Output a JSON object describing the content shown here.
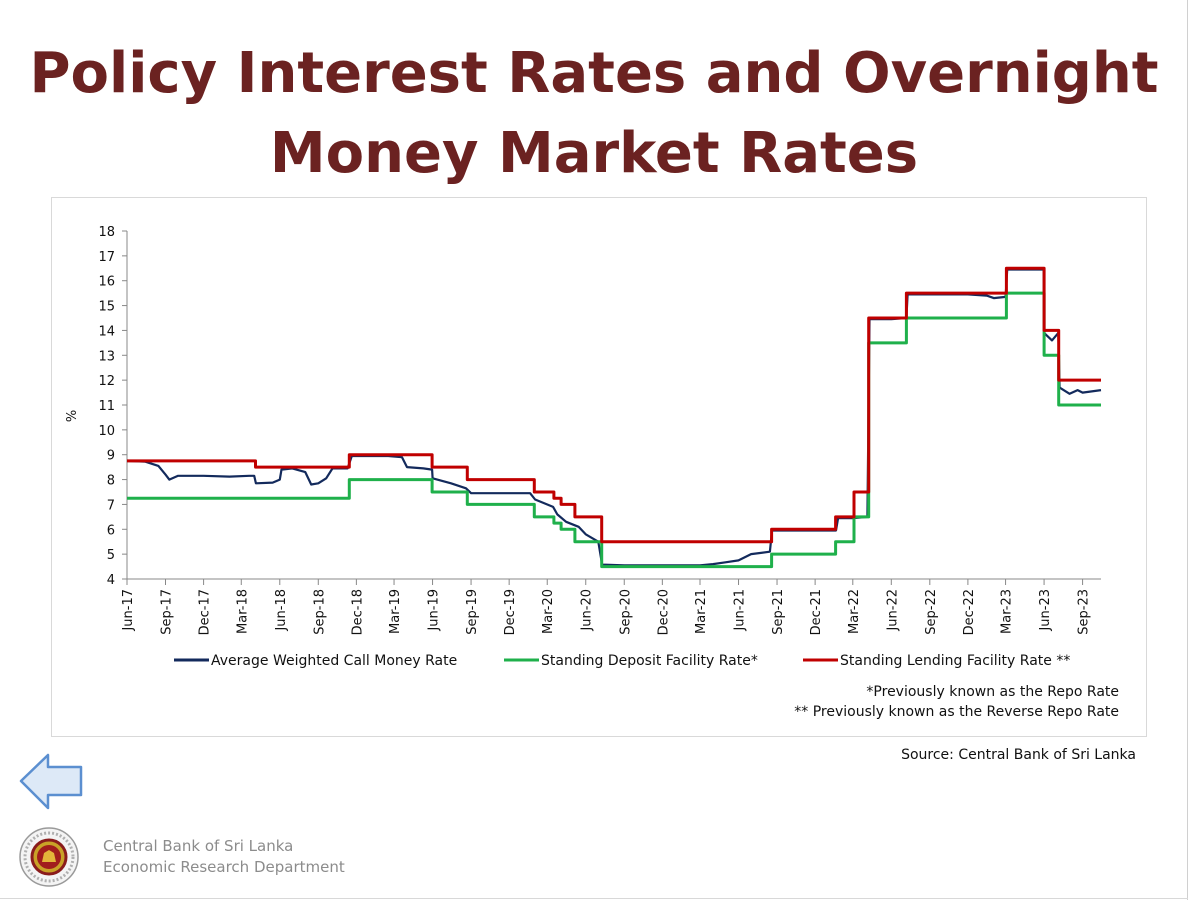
{
  "page": {
    "title_line1": "Policy Interest Rates and Overnight",
    "title_line2": "Money Market Rates",
    "note1": "*Previously known as the Repo Rate",
    "note2": "** Previously known as the  Reverse Repo Rate",
    "source": "Source: Central Bank of Sri Lanka",
    "footer_line1": "Central Bank of Sri Lanka",
    "footer_line2": "Economic Research Department",
    "back_icon": "left-arrow-icon",
    "logo_icon": "central-bank-seal-icon"
  },
  "chart_data": {
    "type": "line",
    "title": "Policy Interest Rates and Overnight Money Market Rates",
    "ylabel": "%",
    "xlabel": "",
    "ylim": [
      4,
      18
    ],
    "yticks": [
      4,
      5,
      6,
      7,
      8,
      9,
      10,
      11,
      12,
      13,
      14,
      15,
      16,
      17,
      18
    ],
    "xlim": [
      "2017-06-01",
      "2023-10-15"
    ],
    "xticks": [
      {
        "label": "Jun-17",
        "date": "2017-06-01"
      },
      {
        "label": "Sep-17",
        "date": "2017-09-01"
      },
      {
        "label": "Dec-17",
        "date": "2017-12-01"
      },
      {
        "label": "Mar-18",
        "date": "2018-03-01"
      },
      {
        "label": "Jun-18",
        "date": "2018-06-01"
      },
      {
        "label": "Sep-18",
        "date": "2018-09-01"
      },
      {
        "label": "Dec-18",
        "date": "2018-12-01"
      },
      {
        "label": "Mar-19",
        "date": "2019-03-01"
      },
      {
        "label": "Jun-19",
        "date": "2019-06-01"
      },
      {
        "label": "Sep-19",
        "date": "2019-09-01"
      },
      {
        "label": "Dec-19",
        "date": "2019-12-01"
      },
      {
        "label": "Mar-20",
        "date": "2020-03-01"
      },
      {
        "label": "Jun-20",
        "date": "2020-06-01"
      },
      {
        "label": "Sep-20",
        "date": "2020-09-01"
      },
      {
        "label": "Dec-20",
        "date": "2020-12-01"
      },
      {
        "label": "Mar-21",
        "date": "2021-03-01"
      },
      {
        "label": "Jun-21",
        "date": "2021-06-01"
      },
      {
        "label": "Sep-21",
        "date": "2021-09-01"
      },
      {
        "label": "Dec-21",
        "date": "2021-12-01"
      },
      {
        "label": "Mar-22",
        "date": "2022-03-01"
      },
      {
        "label": "Jun-22",
        "date": "2022-06-01"
      },
      {
        "label": "Sep-22",
        "date": "2022-09-01"
      },
      {
        "label": "Dec-22",
        "date": "2022-12-01"
      },
      {
        "label": "Mar-23",
        "date": "2023-03-01"
      },
      {
        "label": "Jun-23",
        "date": "2023-06-01"
      },
      {
        "label": "Sep-23",
        "date": "2023-09-01"
      }
    ],
    "legend_placement": "bottom",
    "grid": false,
    "series": [
      {
        "name": "Average Weighted Call Money Rate",
        "color": "#132a5c",
        "step": false,
        "points": [
          [
            "2017-06-01",
            8.75
          ],
          [
            "2017-07-15",
            8.72
          ],
          [
            "2017-08-15",
            8.55
          ],
          [
            "2017-09-01",
            8.2
          ],
          [
            "2017-09-10",
            8.0
          ],
          [
            "2017-10-01",
            8.15
          ],
          [
            "2017-12-01",
            8.15
          ],
          [
            "2018-02-01",
            8.12
          ],
          [
            "2018-03-20",
            8.15
          ],
          [
            "2018-04-01",
            8.15
          ],
          [
            "2018-04-05",
            7.85
          ],
          [
            "2018-05-15",
            7.88
          ],
          [
            "2018-06-01",
            8.0
          ],
          [
            "2018-06-05",
            8.4
          ],
          [
            "2018-07-01",
            8.45
          ],
          [
            "2018-08-01",
            8.3
          ],
          [
            "2018-08-15",
            7.8
          ],
          [
            "2018-09-01",
            7.85
          ],
          [
            "2018-09-20",
            8.05
          ],
          [
            "2018-10-05",
            8.45
          ],
          [
            "2018-11-10",
            8.45
          ],
          [
            "2018-11-20",
            8.95
          ],
          [
            "2018-12-15",
            8.95
          ],
          [
            "2019-02-15",
            8.95
          ],
          [
            "2019-03-20",
            8.9
          ],
          [
            "2019-04-01",
            8.5
          ],
          [
            "2019-05-10",
            8.45
          ],
          [
            "2019-05-31",
            8.4
          ],
          [
            "2019-06-01",
            8.05
          ],
          [
            "2019-07-15",
            7.85
          ],
          [
            "2019-08-20",
            7.65
          ],
          [
            "2019-09-01",
            7.45
          ],
          [
            "2019-10-15",
            7.45
          ],
          [
            "2019-12-01",
            7.45
          ],
          [
            "2020-01-20",
            7.45
          ],
          [
            "2020-02-01",
            7.2
          ],
          [
            "2020-03-15",
            6.9
          ],
          [
            "2020-03-25",
            6.6
          ],
          [
            "2020-04-15",
            6.3
          ],
          [
            "2020-05-15",
            6.1
          ],
          [
            "2020-06-01",
            5.8
          ],
          [
            "2020-07-01",
            5.5
          ],
          [
            "2020-07-10",
            4.58
          ],
          [
            "2020-09-01",
            4.55
          ],
          [
            "2020-12-01",
            4.55
          ],
          [
            "2021-03-01",
            4.55
          ],
          [
            "2021-04-01",
            4.6
          ],
          [
            "2021-05-01",
            4.67
          ],
          [
            "2021-06-01",
            4.75
          ],
          [
            "2021-07-01",
            5.0
          ],
          [
            "2021-08-15",
            5.1
          ],
          [
            "2021-08-20",
            5.95
          ],
          [
            "2021-10-01",
            5.95
          ],
          [
            "2021-12-01",
            5.95
          ],
          [
            "2022-01-20",
            5.95
          ],
          [
            "2022-01-25",
            6.45
          ],
          [
            "2022-03-01",
            6.45
          ],
          [
            "2022-04-05",
            6.5
          ],
          [
            "2022-04-10",
            14.45
          ],
          [
            "2022-06-01",
            14.45
          ],
          [
            "2022-07-07",
            14.5
          ],
          [
            "2022-07-10",
            15.45
          ],
          [
            "2022-09-01",
            15.45
          ],
          [
            "2022-12-01",
            15.45
          ],
          [
            "2023-01-15",
            15.4
          ],
          [
            "2023-02-01",
            15.3
          ],
          [
            "2023-03-01",
            15.35
          ],
          [
            "2023-03-05",
            16.45
          ],
          [
            "2023-05-31",
            16.45
          ],
          [
            "2023-06-01",
            13.9
          ],
          [
            "2023-06-20",
            13.6
          ],
          [
            "2023-07-05",
            13.9
          ],
          [
            "2023-07-08",
            11.7
          ],
          [
            "2023-08-01",
            11.45
          ],
          [
            "2023-08-20",
            11.6
          ],
          [
            "2023-09-01",
            11.5
          ],
          [
            "2023-10-15",
            11.6
          ]
        ]
      },
      {
        "name": "Standing Deposit Facility Rate*",
        "color": "#1fb04b",
        "step": true,
        "points": [
          [
            "2017-06-01",
            7.25
          ],
          [
            "2018-11-14",
            8.0
          ],
          [
            "2019-05-31",
            7.5
          ],
          [
            "2019-08-23",
            7.0
          ],
          [
            "2020-01-30",
            6.5
          ],
          [
            "2020-03-17",
            6.25
          ],
          [
            "2020-04-03",
            6.0
          ],
          [
            "2020-05-06",
            5.5
          ],
          [
            "2020-07-09",
            4.5
          ],
          [
            "2021-08-19",
            5.0
          ],
          [
            "2022-01-19",
            5.5
          ],
          [
            "2022-03-04",
            6.5
          ],
          [
            "2022-04-08",
            13.5
          ],
          [
            "2022-07-07",
            14.5
          ],
          [
            "2023-03-03",
            15.5
          ],
          [
            "2023-06-01",
            13.0
          ],
          [
            "2023-07-06",
            11.0
          ],
          [
            "2023-10-15",
            11.0
          ]
        ]
      },
      {
        "name": "Standing Lending Facility Rate **",
        "color": "#c00000",
        "step": true,
        "points": [
          [
            "2017-06-01",
            8.75
          ],
          [
            "2018-04-04",
            8.5
          ],
          [
            "2018-11-14",
            9.0
          ],
          [
            "2019-05-31",
            8.5
          ],
          [
            "2019-08-23",
            8.0
          ],
          [
            "2020-01-30",
            7.5
          ],
          [
            "2020-03-17",
            7.25
          ],
          [
            "2020-04-03",
            7.0
          ],
          [
            "2020-05-06",
            6.5
          ],
          [
            "2020-07-09",
            5.5
          ],
          [
            "2021-08-19",
            6.0
          ],
          [
            "2022-01-19",
            6.5
          ],
          [
            "2022-03-04",
            7.5
          ],
          [
            "2022-04-08",
            14.5
          ],
          [
            "2022-07-07",
            15.5
          ],
          [
            "2023-03-03",
            16.5
          ],
          [
            "2023-06-01",
            14.0
          ],
          [
            "2023-07-06",
            12.0
          ],
          [
            "2023-10-15",
            12.0
          ]
        ]
      }
    ]
  }
}
